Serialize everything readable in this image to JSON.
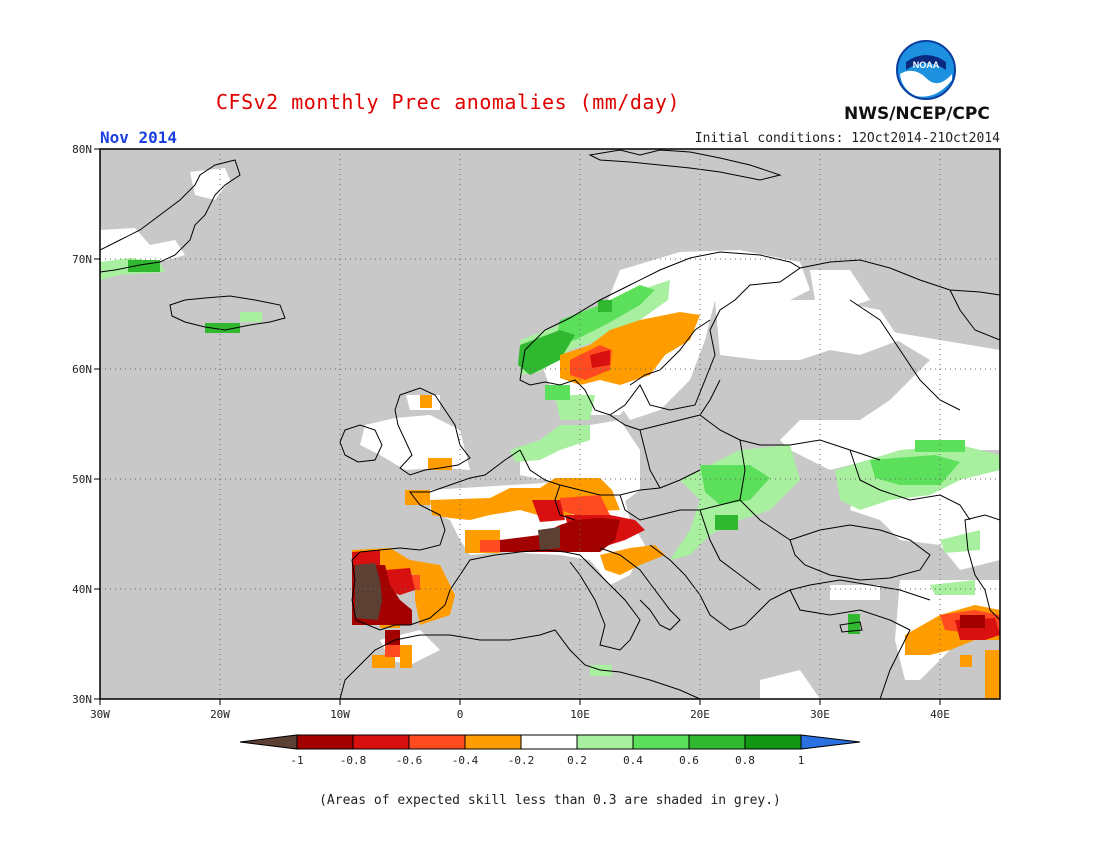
{
  "header": {
    "title": "CFSv2 monthly Prec anomalies (mm/day)",
    "month": "Nov 2014",
    "initial_conditions": "Initial conditions: 12Oct2014-21Oct2014",
    "agency": "NWS/NCEP/CPC",
    "logo_text": "NOAA"
  },
  "axes": {
    "lat_labels": [
      "80N",
      "70N",
      "60N",
      "50N",
      "40N",
      "30N"
    ],
    "lon_labels": [
      "30W",
      "20W",
      "10W",
      "0",
      "10E",
      "20E",
      "30E",
      "40E"
    ],
    "lat_range": [
      30,
      80
    ],
    "lon_range": [
      -30,
      45
    ]
  },
  "colorbar": {
    "tick_labels": [
      "-1",
      "-0.8",
      "-0.6",
      "-0.4",
      "-0.2",
      "0.2",
      "0.4",
      "0.6",
      "0.8",
      "1"
    ],
    "colors": {
      "below_min": "#5c4033",
      "bins": [
        "#a30000",
        "#d81010",
        "#ff4b1f",
        "#ff9d00",
        "#ffffff",
        "#a8f0a0",
        "#5ce05c",
        "#30b830",
        "#129812"
      ],
      "above_max": "#2a70e0"
    }
  },
  "map_colors": {
    "ocean_land_low_skill": "#c8c8c8",
    "coast": "#000000"
  },
  "footnote": "(Areas of expected skill less than 0.3 are shaded in grey.)"
}
